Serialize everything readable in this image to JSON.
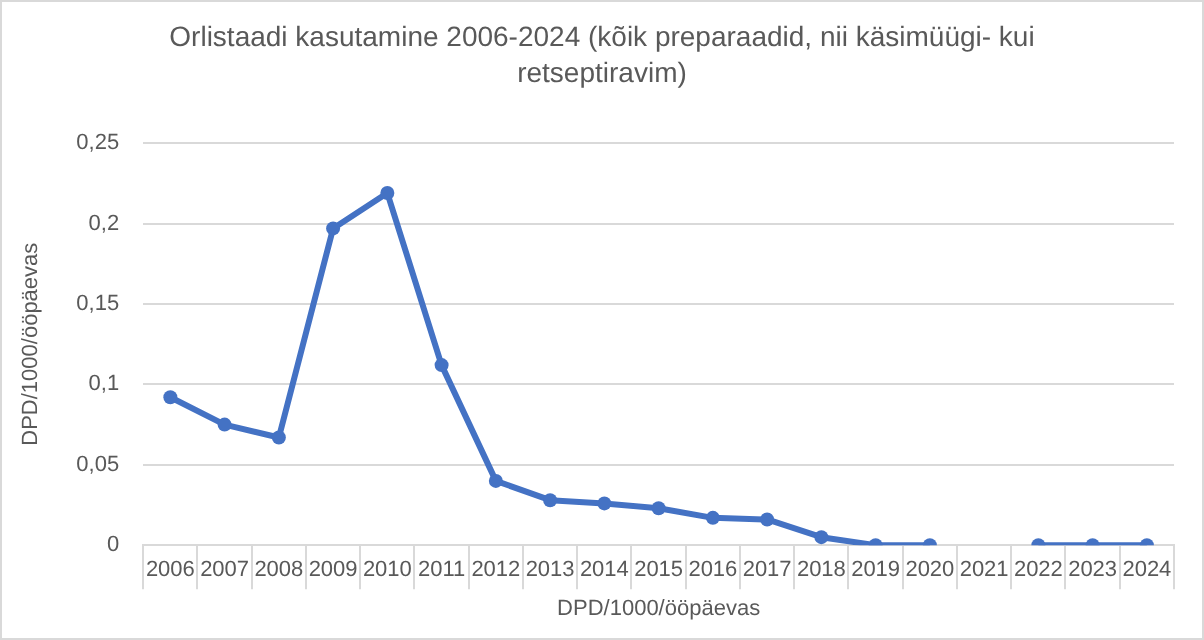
{
  "chart_data": {
    "type": "line",
    "title": "Orlistaadi kasutamine 2006-2024 (kõik preparaadid, nii  käsimüügi- kui retseptiravim)",
    "xlabel": "DPD/1000/ööpäevas",
    "ylabel": "DPD/1000/ööpäevas",
    "categories": [
      "2006",
      "2007",
      "2008",
      "2009",
      "2010",
      "2011",
      "2012",
      "2013",
      "2014",
      "2015",
      "2016",
      "2017",
      "2018",
      "2019",
      "2020",
      "2021",
      "2022",
      "2023",
      "2024"
    ],
    "series": [
      {
        "color": "#4472c4",
        "values": [
          0.092,
          0.075,
          0.067,
          0.197,
          0.219,
          0.112,
          0.04,
          0.028,
          0.026,
          0.023,
          0.017,
          0.016,
          0.005,
          0,
          0,
          null,
          0,
          0,
          0
        ]
      }
    ],
    "ylim": [
      0,
      0.25
    ],
    "yticks": [
      {
        "value": 0,
        "label": "0"
      },
      {
        "value": 0.05,
        "label": "0,05"
      },
      {
        "value": 0.1,
        "label": "0,1"
      },
      {
        "value": 0.15,
        "label": "0,15"
      },
      {
        "value": 0.2,
        "label": "0,2"
      },
      {
        "value": 0.25,
        "label": "0,25"
      }
    ],
    "grid": "y",
    "legend": false,
    "marker": "circle",
    "line_style": "solid"
  }
}
